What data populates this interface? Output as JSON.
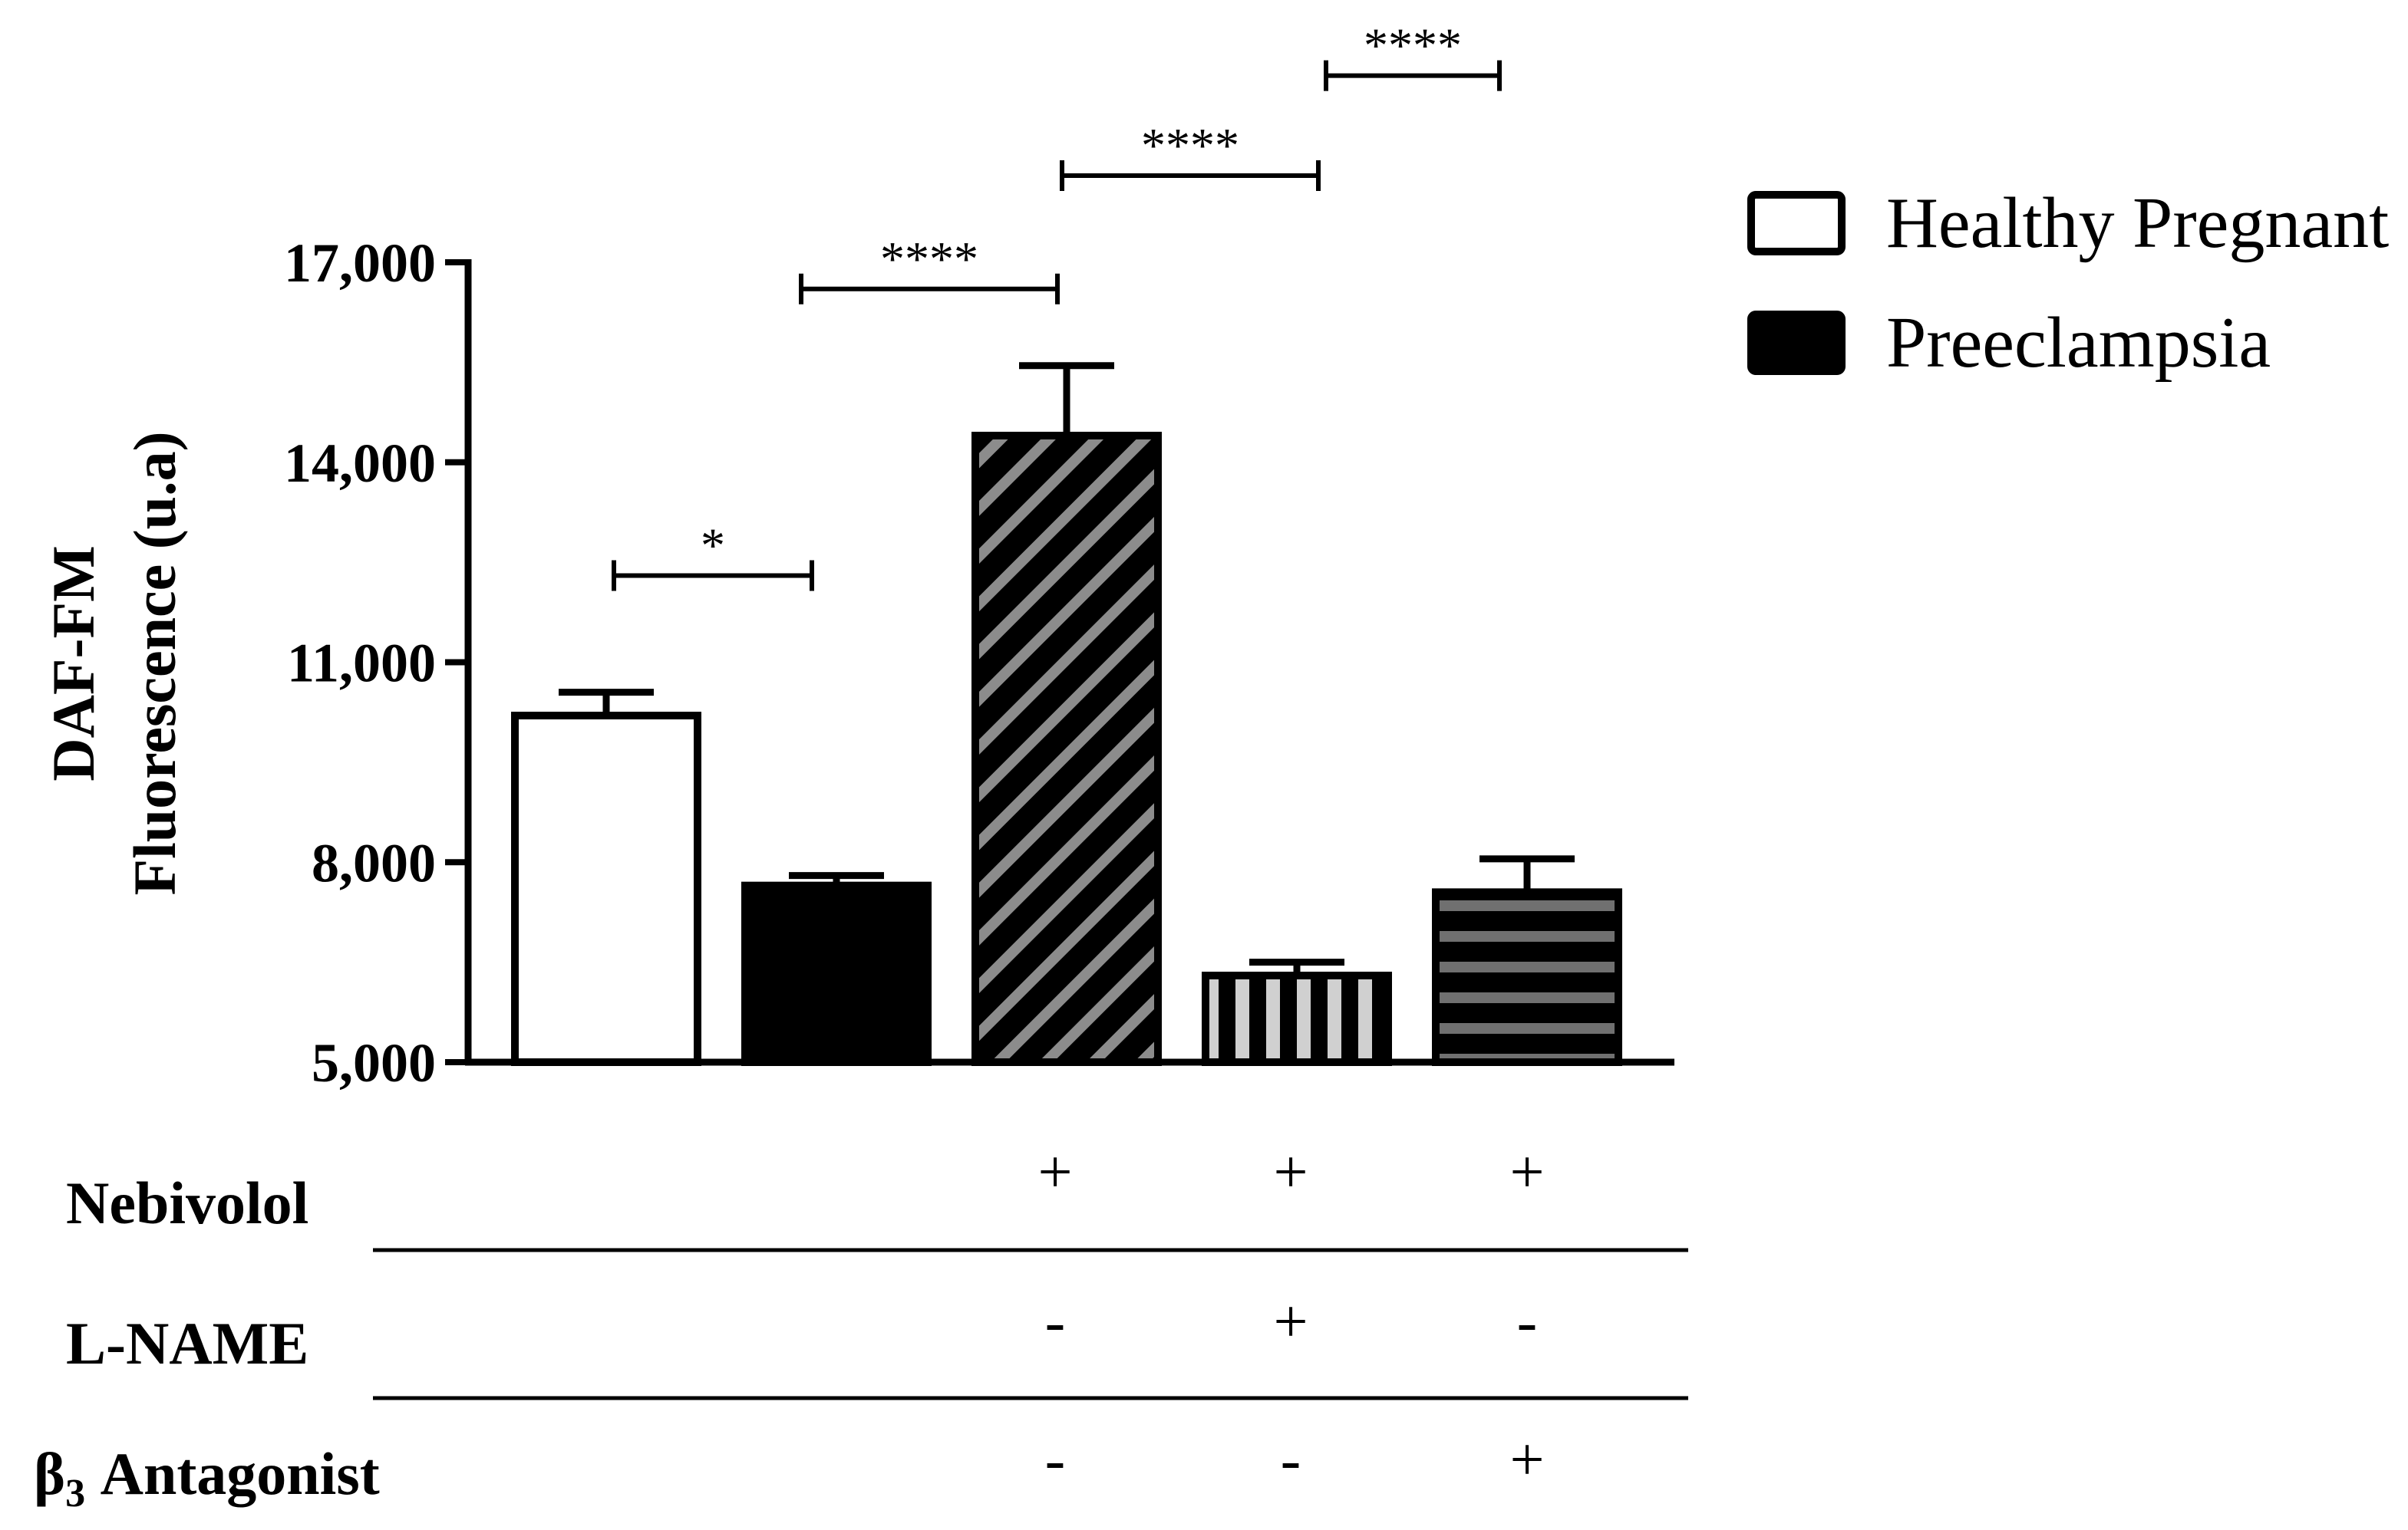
{
  "chart_data": {
    "type": "bar",
    "title": "",
    "xlabel": "",
    "ylabel_lines": [
      "DAF-FM",
      "Fluorescence (u.a)"
    ],
    "ylim": [
      5000,
      17000
    ],
    "yticks": [
      5000,
      8000,
      11000,
      14000,
      17000
    ],
    "ytick_labels": [
      "5,000",
      "8,000",
      "11,000",
      "14,000",
      "17,000"
    ],
    "grid": false,
    "legend_position": "top-right",
    "legend": [
      {
        "label": "Healthy Pregnant",
        "swatch": "white"
      },
      {
        "label": "Preeclampsia",
        "swatch": "black"
      }
    ],
    "bars": [
      {
        "group": "Healthy Pregnant",
        "value": 10200,
        "error": 350,
        "fill": "white"
      },
      {
        "group": "Preeclampsia",
        "value": 7650,
        "error": 150,
        "fill": "black"
      },
      {
        "group": "Preeclampsia",
        "value": 14400,
        "error": 1050,
        "fill": "diagonal-stripes"
      },
      {
        "group": "Preeclampsia",
        "value": 6300,
        "error": 200,
        "fill": "vertical-stripes"
      },
      {
        "group": "Preeclampsia",
        "value": 7550,
        "error": 500,
        "fill": "horizontal-stripes"
      }
    ],
    "significance": [
      {
        "from": 0,
        "to": 1,
        "label": "*",
        "y": 12300
      },
      {
        "from": 1,
        "to": 2,
        "label": "****",
        "y": 16600
      },
      {
        "from": 2,
        "to": 3,
        "label": "****",
        "y": 18300
      },
      {
        "from": 3,
        "to": 4,
        "label": "****",
        "y": 19800
      }
    ],
    "treatments": [
      {
        "label": "Nebivolol",
        "label_sub": "",
        "values": [
          "",
          "",
          "+",
          "+",
          "+"
        ]
      },
      {
        "label": "L-NAME",
        "label_sub": "",
        "values": [
          "",
          "",
          "-",
          "+",
          "-"
        ]
      },
      {
        "label": "β",
        "label_sub": "3",
        "label_rest": " Antagonist",
        "values": [
          "",
          "",
          "-",
          "-",
          "+"
        ]
      }
    ],
    "colors": {
      "ink": "#000000",
      "stripe_light": "#8c8c8c",
      "stripe_vertical": "#d0d0d0",
      "stripe_horizontal": "#707070",
      "background": "#ffffff"
    }
  }
}
